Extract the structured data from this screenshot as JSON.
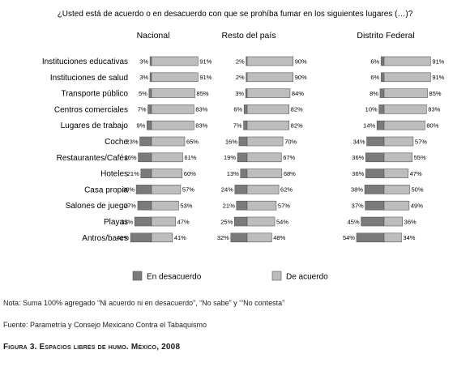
{
  "chart_data": {
    "type": "bar",
    "title": "¿Usted está de acuerdo o en desacuerdo con que se prohíba fumar en los siguientes lugares (…)?",
    "categories": [
      "Instituciones educativas",
      "Instituciones de salud",
      "Transporte público",
      "Centros comerciales",
      "Lugares de trabajo",
      "Coche",
      "Restaurantes/Cafés",
      "Hoteles",
      "Casa propia",
      "Salones de juego",
      "Playas",
      "Antros/bares"
    ],
    "panels": [
      {
        "name": "Nacional",
        "series": [
          {
            "name": "En desacuerdo",
            "values": [
              3,
              3,
              5,
              7,
              9,
              23,
              26,
              21,
              30,
              27,
              33,
              41
            ]
          },
          {
            "name": "De acuerdo",
            "values": [
              91,
              91,
              85,
              83,
              83,
              65,
              61,
              60,
              57,
              53,
              47,
              41
            ]
          }
        ]
      },
      {
        "name": "Resto del país",
        "series": [
          {
            "name": "En desacuerdo",
            "values": [
              2,
              2,
              3,
              6,
              7,
              16,
              19,
              13,
              24,
              21,
              25,
              32
            ]
          },
          {
            "name": "De acuerdo",
            "values": [
              90,
              90,
              84,
              82,
              82,
              70,
              67,
              68,
              62,
              57,
              54,
              48
            ]
          }
        ]
      },
      {
        "name": "Distrito Federal",
        "series": [
          {
            "name": "En desacuerdo",
            "values": [
              6,
              6,
              8,
              10,
              14,
              34,
              36,
              36,
              38,
              37,
              45,
              54
            ]
          },
          {
            "name": "De acuerdo",
            "values": [
              91,
              91,
              85,
              83,
              80,
              57,
              55,
              47,
              50,
              49,
              36,
              34
            ]
          }
        ]
      }
    ],
    "legend": [
      {
        "label": "En desacuerdo",
        "color": "#7a7a7a"
      },
      {
        "label": "De acuerdo",
        "color": "#bdbdbd"
      }
    ],
    "value_suffix": "%",
    "colors": {
      "desacuerdo": "#7a7a7a",
      "acuerdo": "#bdbdbd",
      "outline": "#555555"
    }
  },
  "note": "Nota: Suma 100% agregado “Ni acuerdo ni en desacuerdo”, “No sabe” y ‘“No contesta”",
  "source": "Fuente: Parametría y Consejo Mexicano Contra el Tabaquismo",
  "caption": "Figura 3. Espacios libres de humo. México, 2008"
}
